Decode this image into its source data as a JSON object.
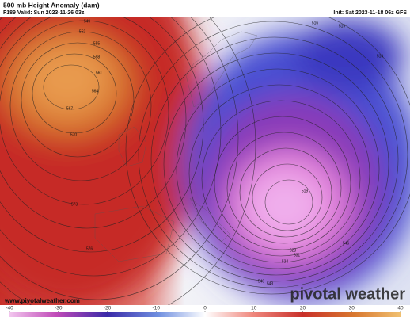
{
  "header": {
    "title": "500 mb Height Anomaly (dam)",
    "valid": "F189 Valid: Sun 2023-11-26 03z",
    "init": "Init: Sat 2023-11-18 06z GFS"
  },
  "map": {
    "contour_labels": [
      549,
      552,
      555,
      558,
      561,
      564,
      567,
      570,
      573,
      576,
      519,
      516,
      516,
      519,
      540,
      543,
      546,
      528,
      531,
      534
    ]
  },
  "footer": {
    "url": "www.pivotalweather.com",
    "brand": "pivotal weather"
  },
  "colorbar": {
    "range": [
      -40,
      40
    ],
    "ticks": [
      -40,
      -30,
      -20,
      -10,
      0,
      10,
      20,
      30,
      40
    ]
  }
}
